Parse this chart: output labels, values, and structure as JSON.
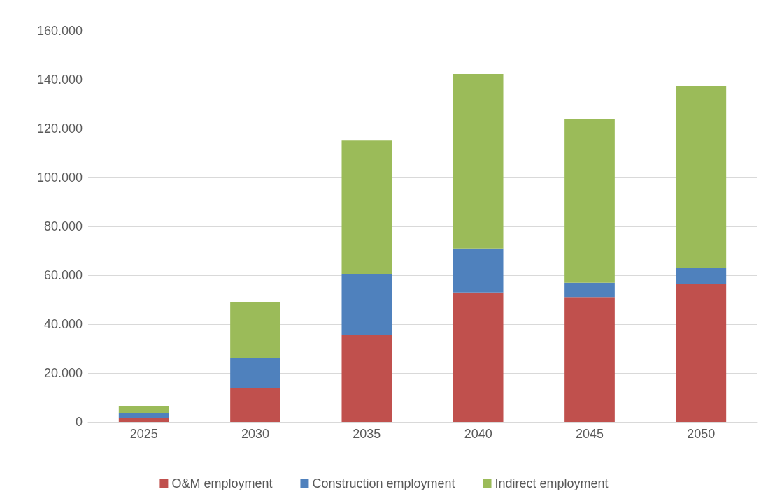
{
  "chart_data": {
    "type": "bar",
    "stacked": true,
    "categories": [
      "2025",
      "2030",
      "2035",
      "2040",
      "2045",
      "2050"
    ],
    "series": [
      {
        "name": "O&M employment",
        "color": "#c0504d",
        "values": [
          1700,
          14000,
          35700,
          52900,
          51100,
          56600
        ]
      },
      {
        "name": "Construction employment",
        "color": "#4f81bd",
        "values": [
          2000,
          12300,
          24900,
          18000,
          5800,
          6500
        ]
      },
      {
        "name": "Indirect employment",
        "color": "#9bbb59",
        "values": [
          2900,
          22600,
          54500,
          71400,
          67100,
          74300
        ]
      }
    ],
    "ylim": [
      0,
      160000
    ],
    "yticks": [
      {
        "value": 0,
        "label": "0"
      },
      {
        "value": 20000,
        "label": "20.000"
      },
      {
        "value": 40000,
        "label": "40.000"
      },
      {
        "value": 60000,
        "label": "60.000"
      },
      {
        "value": 80000,
        "label": "80.000"
      },
      {
        "value": 100000,
        "label": "100.000"
      },
      {
        "value": 120000,
        "label": "120.000"
      },
      {
        "value": 140000,
        "label": "140.000"
      },
      {
        "value": 160000,
        "label": "160.000"
      }
    ],
    "grid": "y",
    "legend": "bottom"
  }
}
